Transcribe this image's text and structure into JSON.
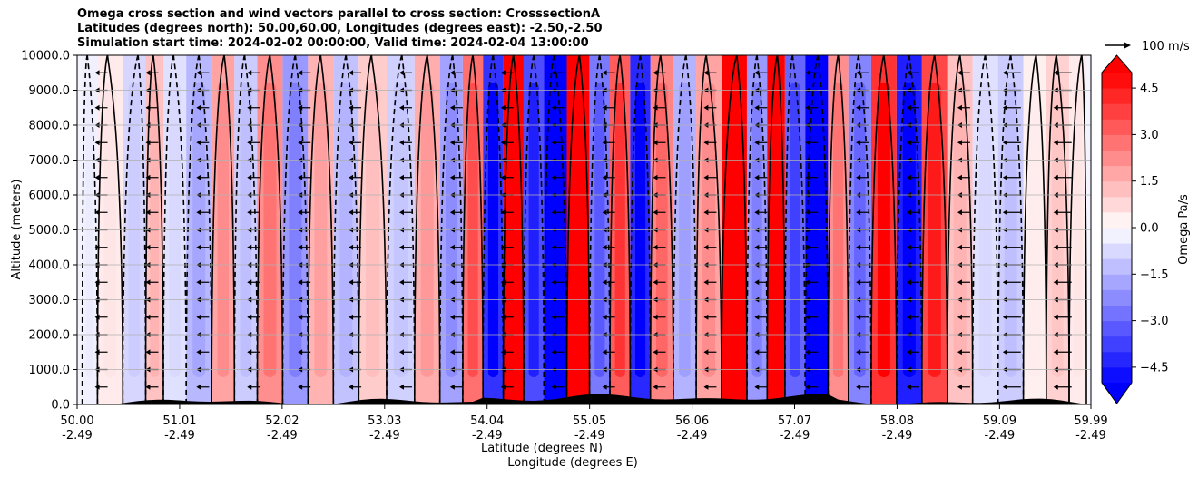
{
  "chart_data": {
    "type": "heatmap",
    "title_lines": [
      "Omega cross section and wind vectors parallel to cross section: CrosssectionA",
      "Latitudes (degrees north): 50.00,60.00, Longitudes (degrees east): -2.50,-2.50",
      "Simulation start time: 2024-02-02 00:00:00, Valid time: 2024-02-04 13:00:00"
    ],
    "ylabel": "Altitude (meters)",
    "xlabel_lines": [
      "Latitude (degrees N)",
      "Longitude (degrees E)"
    ],
    "xlim": [
      50.0,
      59.99
    ],
    "ylim": [
      0,
      10000
    ],
    "x_ticks": [
      {
        "lat": "50.00",
        "lon": "-2.49",
        "v": 50.0
      },
      {
        "lat": "51.01",
        "lon": "-2.49",
        "v": 51.01
      },
      {
        "lat": "52.02",
        "lon": "-2.49",
        "v": 52.02
      },
      {
        "lat": "53.03",
        "lon": "-2.49",
        "v": 53.03
      },
      {
        "lat": "54.04",
        "lon": "-2.49",
        "v": 54.04
      },
      {
        "lat": "55.05",
        "lon": "-2.49",
        "v": 55.05
      },
      {
        "lat": "56.06",
        "lon": "-2.49",
        "v": 56.06
      },
      {
        "lat": "57.07",
        "lon": "-2.49",
        "v": 57.07
      },
      {
        "lat": "58.08",
        "lon": "-2.49",
        "v": 58.08
      },
      {
        "lat": "59.09",
        "lon": "-2.49",
        "v": 59.09
      },
      {
        "lat": "59.99",
        "lon": "-2.49",
        "v": 59.99
      }
    ],
    "y_ticks": [
      {
        "label": "0.0",
        "v": 0
      },
      {
        "label": "1000.0",
        "v": 1000
      },
      {
        "label": "2000.0",
        "v": 2000
      },
      {
        "label": "3000.0",
        "v": 3000
      },
      {
        "label": "4000.0",
        "v": 4000
      },
      {
        "label": "5000.0",
        "v": 5000
      },
      {
        "label": "6000.0",
        "v": 6000
      },
      {
        "label": "7000.0",
        "v": 7000
      },
      {
        "label": "8000.0",
        "v": 8000
      },
      {
        "label": "9000.0",
        "v": 9000
      },
      {
        "label": "10000.0",
        "v": 10000
      }
    ],
    "grid": "horizontal",
    "colorbar": {
      "label": "Omega Pa/s",
      "vmin": -5.0,
      "vmax": 5.0,
      "ticks": [
        {
          "label": "4.5",
          "v": 4.5
        },
        {
          "label": "3.0",
          "v": 3.0
        },
        {
          "label": "1.5",
          "v": 1.5
        },
        {
          "label": "0.0",
          "v": 0.0
        },
        {
          "label": "−1.5",
          "v": -1.5
        },
        {
          "label": "−3.0",
          "v": -3.0
        },
        {
          "label": "−4.5",
          "v": -4.5
        }
      ],
      "negative_color": "#0000ff",
      "positive_color": "#ff0000",
      "neutral_color": "#ffffff"
    },
    "quiver_key": "100 m/s",
    "omega_bands": [
      {
        "lat": 50.1,
        "value": -0.3
      },
      {
        "lat": 50.3,
        "value": 0.4
      },
      {
        "lat": 50.6,
        "value": -0.8
      },
      {
        "lat": 50.75,
        "value": 1.2
      },
      {
        "lat": 50.95,
        "value": -0.6
      },
      {
        "lat": 51.2,
        "value": -1.4
      },
      {
        "lat": 51.45,
        "value": 1.8
      },
      {
        "lat": 51.65,
        "value": -1.0
      },
      {
        "lat": 51.9,
        "value": 2.2
      },
      {
        "lat": 52.15,
        "value": -2.0
      },
      {
        "lat": 52.4,
        "value": 1.5
      },
      {
        "lat": 52.65,
        "value": -1.2
      },
      {
        "lat": 52.9,
        "value": 1.0
      },
      {
        "lat": 53.2,
        "value": -0.9
      },
      {
        "lat": 53.45,
        "value": 1.6
      },
      {
        "lat": 53.7,
        "value": -1.8
      },
      {
        "lat": 53.9,
        "value": 2.8
      },
      {
        "lat": 54.1,
        "value": -4.0
      },
      {
        "lat": 54.3,
        "value": 5.0
      },
      {
        "lat": 54.5,
        "value": -3.5
      },
      {
        "lat": 54.7,
        "value": -5.0
      },
      {
        "lat": 54.95,
        "value": 5.0
      },
      {
        "lat": 55.15,
        "value": -2.6
      },
      {
        "lat": 55.35,
        "value": 3.2
      },
      {
        "lat": 55.55,
        "value": -4.2
      },
      {
        "lat": 55.75,
        "value": 2.4
      },
      {
        "lat": 56.0,
        "value": -1.5
      },
      {
        "lat": 56.2,
        "value": 1.8
      },
      {
        "lat": 56.5,
        "value": 5.0
      },
      {
        "lat": 56.7,
        "value": -2.0
      },
      {
        "lat": 56.9,
        "value": 5.0
      },
      {
        "lat": 57.05,
        "value": -3.0
      },
      {
        "lat": 57.3,
        "value": -5.0
      },
      {
        "lat": 57.5,
        "value": 2.2
      },
      {
        "lat": 57.7,
        "value": -2.4
      },
      {
        "lat": 57.95,
        "value": 4.0
      },
      {
        "lat": 58.2,
        "value": -4.4
      },
      {
        "lat": 58.45,
        "value": 3.6
      },
      {
        "lat": 58.7,
        "value": 1.2
      },
      {
        "lat": 58.95,
        "value": -0.6
      },
      {
        "lat": 59.2,
        "value": -1.0
      },
      {
        "lat": 59.45,
        "value": 0.3
      },
      {
        "lat": 59.65,
        "value": 0.9
      },
      {
        "lat": 59.9,
        "value": 0.4
      }
    ]
  }
}
